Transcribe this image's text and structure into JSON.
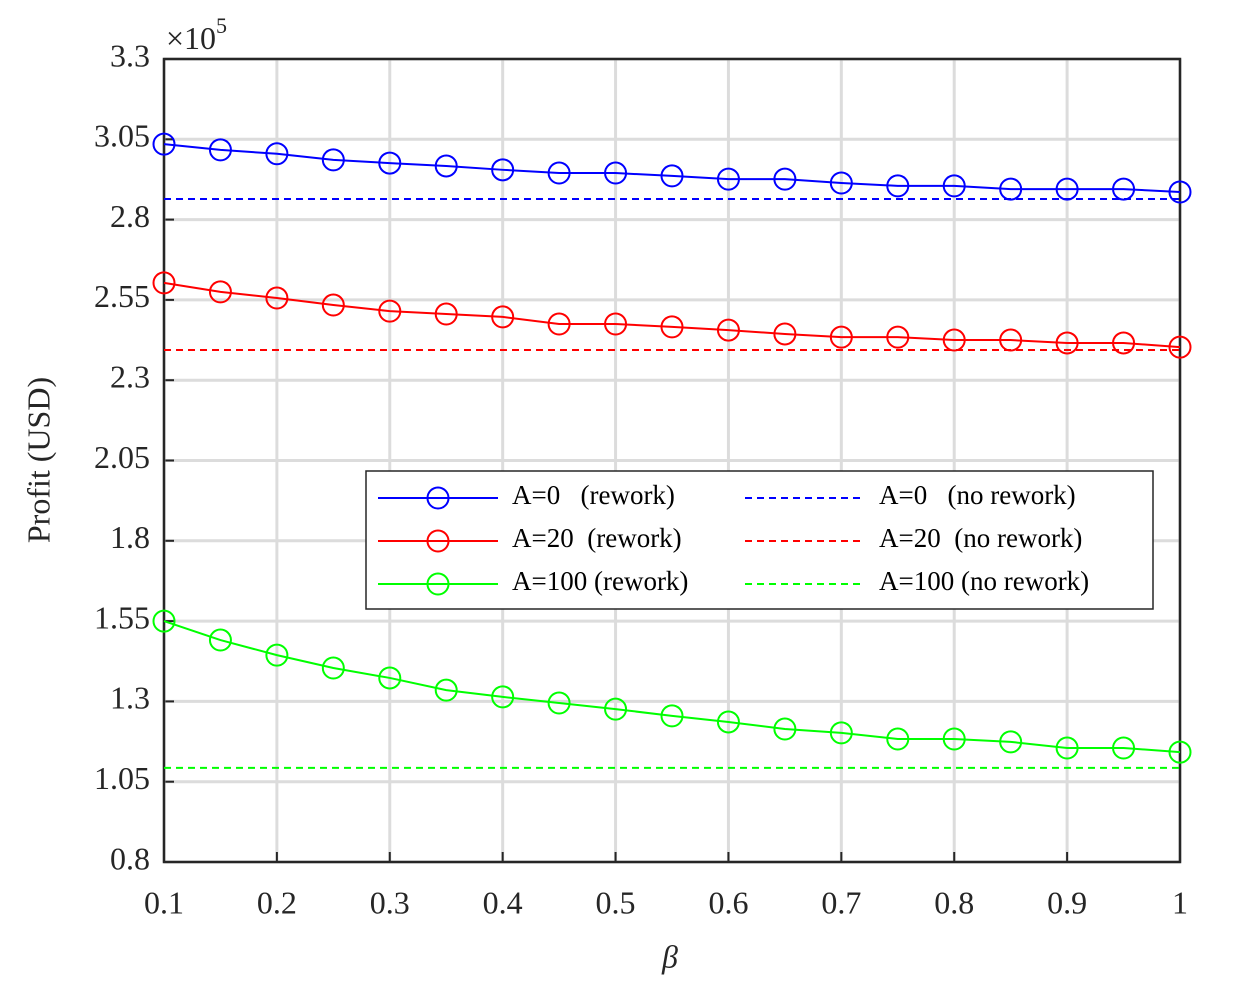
{
  "chart_data": {
    "type": "line",
    "ylabel": "Profit (USD)",
    "xlabel": "β",
    "y_scale_label": {
      "base": "×10",
      "exponent": "5"
    },
    "x": [
      0.1,
      0.15,
      0.2,
      0.25,
      0.3,
      0.35,
      0.4,
      0.45,
      0.5,
      0.55,
      0.6,
      0.65,
      0.7,
      0.75,
      0.8,
      0.85,
      0.9,
      0.95,
      1
    ],
    "xlim": [
      0.1,
      1
    ],
    "xticks": [
      0.1,
      0.2,
      0.3,
      0.4,
      0.5,
      0.6,
      0.7,
      0.8,
      0.9,
      1
    ],
    "ylim": [
      0.8,
      3.3
    ],
    "yticks": [
      0.8,
      1.05,
      1.3,
      1.55,
      1.8,
      2.05,
      2.3,
      2.55,
      2.8,
      3.05,
      3.3
    ],
    "grid": true,
    "series": [
      {
        "name": "A=0   (rework)",
        "color": "#0000ff",
        "marker": "circle",
        "dashed": false,
        "values": [
          3.035,
          3.017,
          3.005,
          2.986,
          2.976,
          2.967,
          2.955,
          2.945,
          2.945,
          2.936,
          2.926,
          2.926,
          2.914,
          2.905,
          2.905,
          2.895,
          2.895,
          2.895,
          2.886
        ]
      },
      {
        "name": "A=0   (no rework)",
        "color": "#0000ff",
        "marker": "none",
        "dashed": true,
        "values": [
          2.864,
          2.864,
          2.864,
          2.864,
          2.864,
          2.864,
          2.864,
          2.864,
          2.864,
          2.864,
          2.864,
          2.864,
          2.864,
          2.864,
          2.864,
          2.864,
          2.864,
          2.864,
          2.864
        ]
      },
      {
        "name": "A=20  (rework)",
        "color": "#ff0000",
        "marker": "circle",
        "dashed": false,
        "values": [
          2.603,
          2.575,
          2.556,
          2.534,
          2.515,
          2.506,
          2.497,
          2.475,
          2.475,
          2.466,
          2.456,
          2.444,
          2.434,
          2.434,
          2.425,
          2.425,
          2.416,
          2.416,
          2.403
        ]
      },
      {
        "name": "A=20  (no rework)",
        "color": "#ff0000",
        "marker": "none",
        "dashed": true,
        "values": [
          2.394,
          2.394,
          2.394,
          2.394,
          2.394,
          2.394,
          2.394,
          2.394,
          2.394,
          2.394,
          2.394,
          2.394,
          2.394,
          2.394,
          2.394,
          2.394,
          2.394,
          2.394,
          2.394
        ]
      },
      {
        "name": "A=100 (rework)",
        "color": "#00ff00",
        "marker": "circle",
        "dashed": false,
        "values": [
          1.55,
          1.491,
          1.444,
          1.404,
          1.373,
          1.335,
          1.314,
          1.295,
          1.276,
          1.255,
          1.236,
          1.214,
          1.202,
          1.183,
          1.183,
          1.174,
          1.155,
          1.155,
          1.142
        ]
      },
      {
        "name": "A=100 (no rework)",
        "color": "#00ff00",
        "marker": "none",
        "dashed": true,
        "values": [
          1.093,
          1.093,
          1.093,
          1.093,
          1.093,
          1.093,
          1.093,
          1.093,
          1.093,
          1.093,
          1.093,
          1.093,
          1.093,
          1.093,
          1.093,
          1.093,
          1.093,
          1.093,
          1.093
        ]
      }
    ]
  }
}
